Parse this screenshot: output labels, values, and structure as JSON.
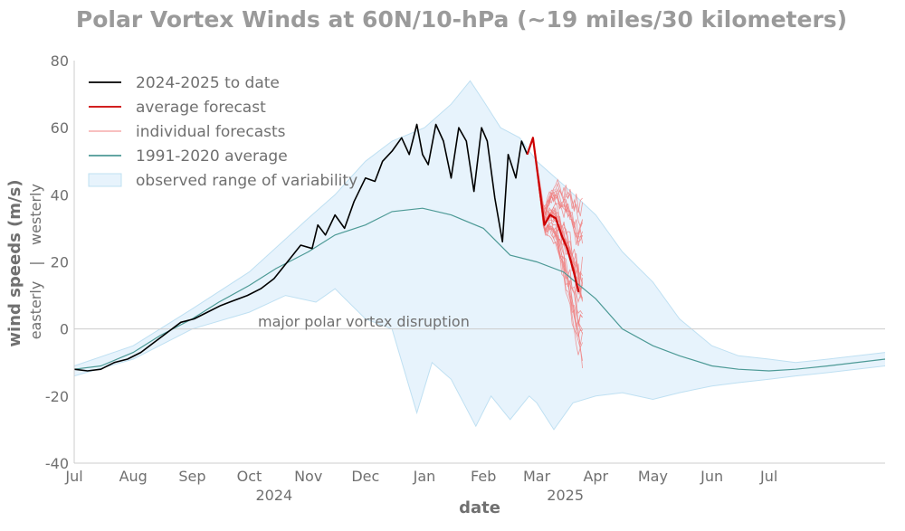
{
  "chart_data": {
    "type": "line",
    "title": "Polar Vortex Winds at 60N/10-hPa (~19 miles/30 kilometers)",
    "xlabel": "date",
    "ylabel": "wind speeds (m/s)",
    "ylabel_sub_neg": "easterly",
    "ylabel_sub_sep": "|",
    "ylabel_sub_pos": "westerly",
    "ylim": [
      -40,
      80
    ],
    "yticks": [
      -40,
      -20,
      0,
      20,
      40,
      60,
      80
    ],
    "ytick_labels": [
      "-40",
      "-20",
      "0",
      "20",
      "40",
      "60",
      "80"
    ],
    "xrange": [
      "2024-07-01",
      "2025-08-31"
    ],
    "xticks": [
      {
        "date": "2024-07-01",
        "label": "Jul"
      },
      {
        "date": "2024-08-01",
        "label": "Aug"
      },
      {
        "date": "2024-09-01",
        "label": "Sep"
      },
      {
        "date": "2024-10-01",
        "label": "Oct"
      },
      {
        "date": "2024-11-01",
        "label": "Nov"
      },
      {
        "date": "2024-12-01",
        "label": "Dec"
      },
      {
        "date": "2025-01-01",
        "label": "Jan"
      },
      {
        "date": "2025-02-01",
        "label": "Feb"
      },
      {
        "date": "2025-03-01",
        "label": "Mar"
      },
      {
        "date": "2025-04-01",
        "label": "Apr"
      },
      {
        "date": "2025-05-01",
        "label": "May"
      },
      {
        "date": "2025-06-01",
        "label": "Jun"
      },
      {
        "date": "2025-07-01",
        "label": "Jul"
      }
    ],
    "year_labels": [
      {
        "date": "2024-10-14",
        "label": "2024"
      },
      {
        "date": "2025-03-16",
        "label": "2025"
      }
    ],
    "annotation": {
      "text": "major polar vortex disruption",
      "date": "2024-10-01",
      "value": 0
    },
    "zero_line": 0,
    "grid": false,
    "legend_position": "top-left",
    "colors": {
      "observed": "#000000",
      "forecast_avg": "#cc0000",
      "forecast_members": "#f08080",
      "climatology": "#4d9a96",
      "range_fill": "#e7f3fc",
      "range_edge": "#bfe0f2",
      "zero_line": "#cccccc",
      "axis": "#cccccc"
    },
    "legend": [
      {
        "key": "observed",
        "label": "2024-2025 to date"
      },
      {
        "key": "forecast_avg",
        "label": "average forecast"
      },
      {
        "key": "forecast_members",
        "label": "individual forecasts"
      },
      {
        "key": "climatology",
        "label": "1991-2020 average"
      },
      {
        "key": "range",
        "label": "observed range of variability"
      }
    ],
    "series": [
      {
        "name": "2024-2025 to date",
        "x": [
          "2024-07-01",
          "2024-07-08",
          "2024-07-15",
          "2024-07-22",
          "2024-07-29",
          "2024-08-05",
          "2024-08-12",
          "2024-08-19",
          "2024-08-26",
          "2024-09-02",
          "2024-09-09",
          "2024-09-16",
          "2024-09-23",
          "2024-09-30",
          "2024-10-07",
          "2024-10-14",
          "2024-10-21",
          "2024-10-28",
          "2024-11-03",
          "2024-11-06",
          "2024-11-10",
          "2024-11-15",
          "2024-11-20",
          "2024-11-25",
          "2024-12-01",
          "2024-12-06",
          "2024-12-10",
          "2024-12-15",
          "2024-12-20",
          "2024-12-24",
          "2024-12-28",
          "2024-12-31",
          "2025-01-03",
          "2025-01-07",
          "2025-01-11",
          "2025-01-15",
          "2025-01-19",
          "2025-01-23",
          "2025-01-27",
          "2025-01-31",
          "2025-02-03",
          "2025-02-07",
          "2025-02-11",
          "2025-02-14",
          "2025-02-18",
          "2025-02-21",
          "2025-02-24"
        ],
        "y": [
          -12,
          -12.5,
          -12,
          -10,
          -9,
          -7,
          -4,
          -1,
          2,
          3,
          5,
          7,
          8.5,
          10,
          12,
          15,
          20,
          25,
          24,
          31,
          28,
          34,
          30,
          38,
          45,
          44,
          50,
          53,
          57,
          52,
          61,
          52,
          49,
          61,
          56,
          45,
          60,
          56,
          41,
          60,
          56,
          39,
          26,
          52,
          45,
          56,
          52
        ]
      },
      {
        "name": "average forecast",
        "x": [
          "2025-02-24",
          "2025-02-27",
          "2025-03-02",
          "2025-03-05",
          "2025-03-08",
          "2025-03-11",
          "2025-03-14",
          "2025-03-17",
          "2025-03-20",
          "2025-03-23"
        ],
        "y": [
          52,
          57,
          44,
          31,
          34,
          33,
          28,
          24,
          18,
          11
        ]
      },
      {
        "name": "1991-2020 average",
        "x": [
          "2024-07-01",
          "2024-07-15",
          "2024-08-01",
          "2024-08-15",
          "2024-09-01",
          "2024-09-15",
          "2024-10-01",
          "2024-10-15",
          "2024-11-01",
          "2024-11-15",
          "2024-12-01",
          "2024-12-15",
          "2024-12-31",
          "2025-01-15",
          "2025-02-01",
          "2025-02-15",
          "2025-03-01",
          "2025-03-15",
          "2025-04-01",
          "2025-04-15",
          "2025-05-01",
          "2025-05-15",
          "2025-06-01",
          "2025-06-15",
          "2025-07-01",
          "2025-07-15",
          "2025-08-01",
          "2025-08-31"
        ],
        "y": [
          -12,
          -11,
          -7,
          -2,
          3,
          8,
          13,
          18,
          23,
          28,
          31,
          35,
          36,
          34,
          30,
          22,
          20,
          17,
          9,
          0,
          -5,
          -8,
          -11,
          -12,
          -12.5,
          -12,
          -11,
          -9
        ]
      },
      {
        "name": "observed range upper",
        "x": [
          "2024-07-01",
          "2024-08-01",
          "2024-09-01",
          "2024-10-01",
          "2024-11-01",
          "2024-11-15",
          "2024-12-01",
          "2024-12-15",
          "2025-01-01",
          "2025-01-15",
          "2025-01-25",
          "2025-02-01",
          "2025-02-10",
          "2025-02-20",
          "2025-03-01",
          "2025-03-15",
          "2025-04-01",
          "2025-04-15",
          "2025-05-01",
          "2025-05-15",
          "2025-06-01",
          "2025-06-15",
          "2025-07-01",
          "2025-07-15",
          "2025-08-01",
          "2025-08-31"
        ],
        "y": [
          -11,
          -5,
          6,
          17,
          33,
          40,
          50,
          56,
          60,
          67,
          74,
          68,
          60,
          57,
          50,
          43,
          34,
          23,
          14,
          3,
          -5,
          -8,
          -9,
          -10,
          -9,
          -7
        ]
      },
      {
        "name": "observed range lower",
        "x": [
          "2024-07-01",
          "2024-08-01",
          "2024-09-01",
          "2024-10-01",
          "2024-10-20",
          "2024-11-05",
          "2024-11-15",
          "2024-12-01",
          "2024-12-15",
          "2024-12-28",
          "2025-01-05",
          "2025-01-15",
          "2025-01-28",
          "2025-02-05",
          "2025-02-15",
          "2025-02-25",
          "2025-03-01",
          "2025-03-10",
          "2025-03-20",
          "2025-04-01",
          "2025-04-15",
          "2025-05-01",
          "2025-05-15",
          "2025-06-01",
          "2025-06-15",
          "2025-07-01",
          "2025-07-15",
          "2025-08-01",
          "2025-08-31"
        ],
        "y": [
          -14,
          -9,
          0,
          5,
          10,
          8,
          12,
          3,
          0,
          -25,
          -10,
          -15,
          -29,
          -20,
          -27,
          -20,
          -22,
          -30,
          -22,
          -20,
          -19,
          -21,
          -19,
          -17,
          -16,
          -15,
          -14,
          -13,
          -11
        ]
      }
    ],
    "forecast_ensemble": {
      "name": "individual forecasts",
      "start": "2025-02-27",
      "end": "2025-03-25",
      "min_end": -10,
      "max_end": 40
    }
  }
}
